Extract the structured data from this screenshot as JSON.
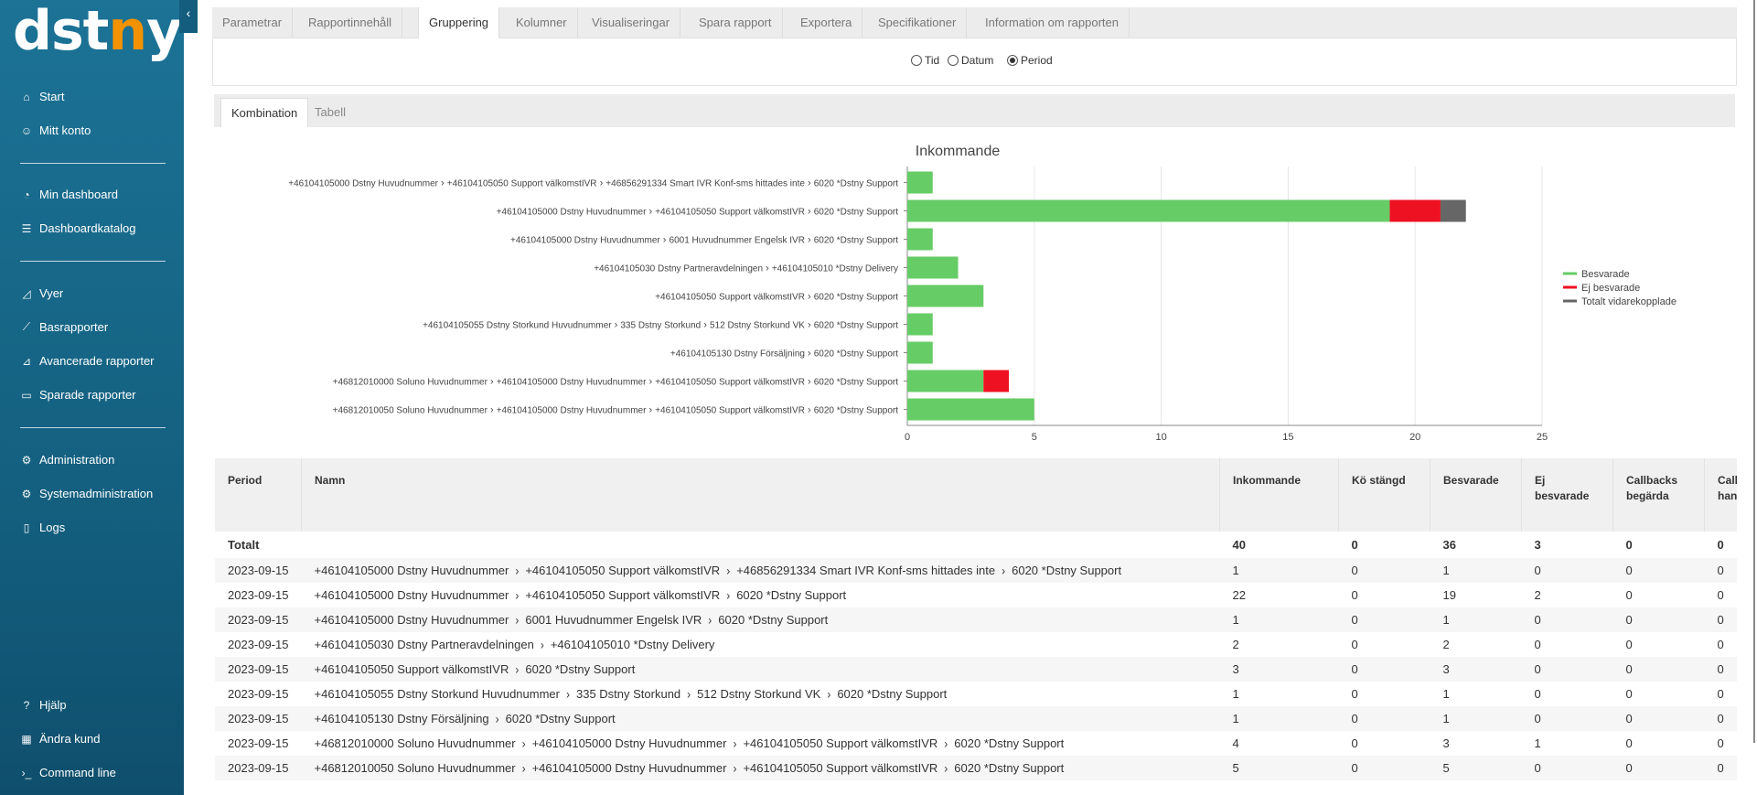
{
  "sidebar": {
    "logo_main": "dstny",
    "collapse_glyph": "‹",
    "items": [
      {
        "label": "Start",
        "icon": "home-icon",
        "glyph": "⌂"
      },
      {
        "label": "Mitt konto",
        "icon": "user-icon",
        "glyph": "☺"
      },
      {
        "label": "Min dashboard",
        "icon": "gauge-icon",
        "glyph": "◔"
      },
      {
        "label": "Dashboardkatalog",
        "icon": "list-icon",
        "glyph": "☰"
      },
      {
        "label": "Vyer",
        "icon": "chart-area-icon",
        "glyph": "◿"
      },
      {
        "label": "Basrapporter",
        "icon": "line-chart-icon",
        "glyph": "⟋"
      },
      {
        "label": "Avancerade rapporter",
        "icon": "advanced-chart-icon",
        "glyph": "⊿"
      },
      {
        "label": "Sparade rapporter",
        "icon": "folder-icon",
        "glyph": "▭"
      },
      {
        "label": "Administration",
        "icon": "gear-icon",
        "glyph": "⚙"
      },
      {
        "label": "Systemadministration",
        "icon": "gears-icon",
        "glyph": "⚙"
      },
      {
        "label": "Logs",
        "icon": "file-icon",
        "glyph": "▯"
      },
      {
        "label": "Hjälp",
        "icon": "help-icon",
        "glyph": "?"
      },
      {
        "label": "Ändra kund",
        "icon": "building-icon",
        "glyph": "▦"
      },
      {
        "label": "Command line",
        "icon": "terminal-icon",
        "glyph": "›_"
      }
    ]
  },
  "tabs": [
    "Parametrar",
    "Rapportinnehåll",
    "Gruppering",
    "Kolumner",
    "Visualiseringar",
    "Spara rapport",
    "Exportera",
    "Specifikationer",
    "Information om rapporten"
  ],
  "active_tab": "Gruppering",
  "radios": [
    {
      "label": "Tid",
      "checked": false
    },
    {
      "label": "Datum",
      "checked": false
    },
    {
      "label": "Period",
      "checked": true
    }
  ],
  "subtabs": [
    "Kombination",
    "Tabell"
  ],
  "chart_data": {
    "type": "bar",
    "orientation": "horizontal",
    "stacked": true,
    "title": "Inkommande",
    "categories": [
      [
        "+46104105000 Dstny Huvudnummer",
        "+46104105050 Support välkomstIVR",
        "+46856291334 Smart IVR Konf-sms hittades inte",
        "6020 *Dstny Support"
      ],
      [
        "+46104105000 Dstny Huvudnummer",
        "+46104105050 Support välkomstIVR",
        "6020 *Dstny Support"
      ],
      [
        "+46104105000 Dstny Huvudnummer",
        "6001 Huvudnummer Engelsk IVR",
        "6020 *Dstny Support"
      ],
      [
        "+46104105030 Dstny Partneravdelningen",
        "+46104105010 *Dstny Delivery"
      ],
      [
        "+46104105050 Support välkomstIVR",
        "6020 *Dstny Support"
      ],
      [
        "+46104105055 Dstny Storkund Huvudnummer",
        "335 Dstny Storkund",
        "512 Dstny Storkund VK",
        "6020 *Dstny Support"
      ],
      [
        "+46104105130 Dstny Försäljning",
        "6020 *Dstny Support"
      ],
      [
        "+46812010000 Soluno Huvudnummer",
        "+46104105000 Dstny Huvudnummer",
        "+46104105050 Support välkomstIVR",
        "6020 *Dstny Support"
      ],
      [
        "+46812010050 Soluno Huvudnummer",
        "+46104105000 Dstny Huvudnummer",
        "+46104105050 Support välkomstIVR",
        "6020 *Dstny Support"
      ]
    ],
    "series": [
      {
        "name": "Besvarade",
        "color": "#66cc66",
        "values": [
          1,
          19,
          1,
          2,
          3,
          1,
          1,
          3,
          5
        ]
      },
      {
        "name": "Ej besvarade",
        "color": "#ee1122",
        "values": [
          0,
          2,
          0,
          0,
          0,
          0,
          0,
          1,
          0
        ]
      },
      {
        "name": "Totalt vidarekopplade",
        "color": "#666666",
        "values": [
          0,
          1,
          0,
          0,
          0,
          0,
          0,
          0,
          0
        ]
      }
    ],
    "xlim": [
      0,
      25
    ],
    "xticks": [
      0,
      5,
      10,
      15,
      20,
      25
    ],
    "grid": true,
    "legend": "right"
  },
  "table": {
    "headers": [
      "Period",
      "Namn",
      "Inkommande",
      "Kö stängd",
      "Besvarade",
      "Ej besvarade",
      "Callbacks begärda",
      "Call han"
    ],
    "header_lines": [
      [
        "Period"
      ],
      [
        "Namn"
      ],
      [
        "Inkommande"
      ],
      [
        "Kö stängd"
      ],
      [
        "Besvarade"
      ],
      [
        "Ej",
        "besvarade"
      ],
      [
        "Callbacks",
        "begärda"
      ],
      [
        "Call",
        "han"
      ]
    ],
    "total": {
      "label": "Totalt",
      "values": [
        "40",
        "0",
        "36",
        "3",
        "0",
        "0"
      ]
    },
    "rows": [
      {
        "period": "2023-09-15",
        "path": [
          "+46104105000 Dstny Huvudnummer",
          "+46104105050 Support välkomstIVR",
          "+46856291334 Smart IVR Konf-sms hittades inte",
          "6020 *Dstny Support"
        ],
        "values": [
          "1",
          "0",
          "1",
          "0",
          "0",
          "0"
        ]
      },
      {
        "period": "2023-09-15",
        "path": [
          "+46104105000 Dstny Huvudnummer",
          "+46104105050 Support välkomstIVR",
          "6020 *Dstny Support"
        ],
        "values": [
          "22",
          "0",
          "19",
          "2",
          "0",
          "0"
        ]
      },
      {
        "period": "2023-09-15",
        "path": [
          "+46104105000 Dstny Huvudnummer",
          "6001 Huvudnummer Engelsk IVR",
          "6020 *Dstny Support"
        ],
        "values": [
          "1",
          "0",
          "1",
          "0",
          "0",
          "0"
        ]
      },
      {
        "period": "2023-09-15",
        "path": [
          "+46104105030 Dstny Partneravdelningen",
          "+46104105010 *Dstny Delivery"
        ],
        "values": [
          "2",
          "0",
          "2",
          "0",
          "0",
          "0"
        ]
      },
      {
        "period": "2023-09-15",
        "path": [
          "+46104105050 Support välkomstIVR",
          "6020 *Dstny Support"
        ],
        "values": [
          "3",
          "0",
          "3",
          "0",
          "0",
          "0"
        ]
      },
      {
        "period": "2023-09-15",
        "path": [
          "+46104105055 Dstny Storkund Huvudnummer",
          "335 Dstny Storkund",
          "512 Dstny Storkund VK",
          "6020 *Dstny Support"
        ],
        "values": [
          "1",
          "0",
          "1",
          "0",
          "0",
          "0"
        ]
      },
      {
        "period": "2023-09-15",
        "path": [
          "+46104105130 Dstny Försäljning",
          "6020 *Dstny Support"
        ],
        "values": [
          "1",
          "0",
          "1",
          "0",
          "0",
          "0"
        ]
      },
      {
        "period": "2023-09-15",
        "path": [
          "+46812010000 Soluno Huvudnummer",
          "+46104105000 Dstny Huvudnummer",
          "+46104105050 Support välkomstIVR",
          "6020 *Dstny Support"
        ],
        "values": [
          "4",
          "0",
          "3",
          "1",
          "0",
          "0"
        ]
      },
      {
        "period": "2023-09-15",
        "path": [
          "+46812010050 Soluno Huvudnummer",
          "+46104105000 Dstny Huvudnummer",
          "+46104105050 Support välkomstIVR",
          "6020 *Dstny Support"
        ],
        "values": [
          "5",
          "0",
          "5",
          "0",
          "0",
          "0"
        ]
      }
    ]
  }
}
